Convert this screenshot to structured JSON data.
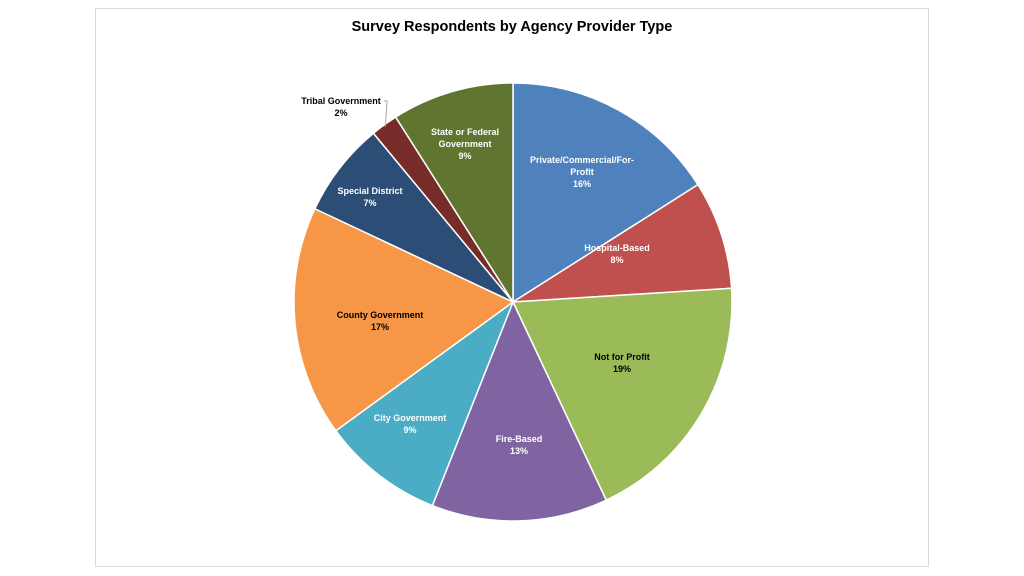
{
  "chart_data": {
    "type": "pie",
    "title": "Survey Respondents by Agency Provider Type",
    "slices": [
      {
        "label_lines": [
          "Private/Commercial/For-",
          "Profit"
        ],
        "value_label": "16%",
        "value": 16,
        "color": "#4F81BD",
        "label_color": "#ffffff"
      },
      {
        "label_lines": [
          "Hospital-Based"
        ],
        "value_label": "8%",
        "value": 8,
        "color": "#C0504D",
        "label_color": "#ffffff"
      },
      {
        "label_lines": [
          "Not for Profit"
        ],
        "value_label": "19%",
        "value": 19,
        "color": "#9BBB59",
        "label_color": "#000000"
      },
      {
        "label_lines": [
          "Fire-Based"
        ],
        "value_label": "13%",
        "value": 13,
        "color": "#8064A2",
        "label_color": "#ffffff"
      },
      {
        "label_lines": [
          "City Government"
        ],
        "value_label": "9%",
        "value": 9,
        "color": "#4BACC6",
        "label_color": "#ffffff"
      },
      {
        "label_lines": [
          "County Government"
        ],
        "value_label": "17%",
        "value": 17,
        "color": "#F79646",
        "label_color": "#000000"
      },
      {
        "label_lines": [
          "Special District"
        ],
        "value_label": "7%",
        "value": 7,
        "color": "#2C4D75",
        "label_color": "#ffffff"
      },
      {
        "label_lines": [
          "Tribal Government"
        ],
        "value_label": "2%",
        "value": 2,
        "color": "#772C2A",
        "label_color": "#000000"
      },
      {
        "label_lines": [
          "State or Federal",
          "Government"
        ],
        "value_label": "9%",
        "value": 9,
        "color": "#5F7530",
        "label_color": "#ffffff"
      }
    ],
    "legend": "none"
  }
}
